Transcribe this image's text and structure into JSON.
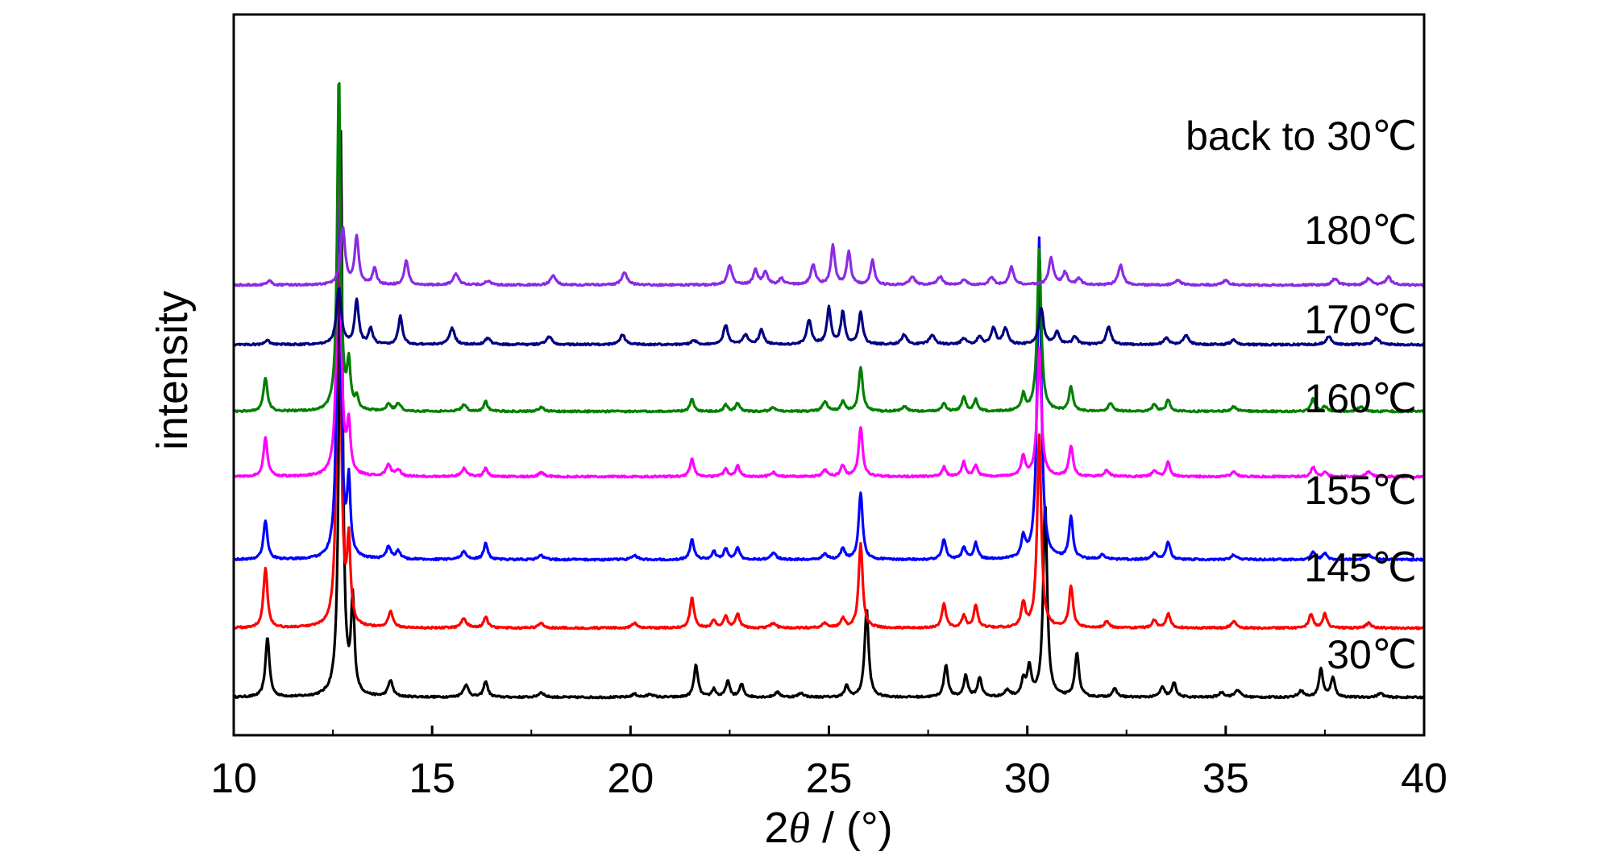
{
  "chart_data": {
    "type": "line",
    "xlabel_prefix": "2",
    "xlabel_symbol": "θ",
    "xlabel_suffix": " / (°)",
    "ylabel": "intensity",
    "xlim": [
      10,
      40
    ],
    "xticks": [
      10,
      15,
      20,
      25,
      30,
      35,
      40
    ],
    "yticks_shown": false,
    "grid": false,
    "legend": "labels above each trace on the right",
    "series": [
      {
        "name": "30℃",
        "color": "#000000",
        "offset": 0,
        "base": 2.0,
        "peaks": [
          [
            10.85,
            75,
            0.06
          ],
          [
            12.7,
            700,
            0.05
          ],
          [
            13.0,
            115,
            0.05
          ],
          [
            13.95,
            20,
            0.07
          ],
          [
            15.85,
            15,
            0.08
          ],
          [
            16.35,
            20,
            0.06
          ],
          [
            17.75,
            6,
            0.08
          ],
          [
            20.1,
            4,
            0.08
          ],
          [
            20.5,
            4,
            0.08
          ],
          [
            21.65,
            40,
            0.06
          ],
          [
            22.1,
            10,
            0.06
          ],
          [
            22.45,
            20,
            0.06
          ],
          [
            22.8,
            16,
            0.06
          ],
          [
            23.7,
            6,
            0.08
          ],
          [
            24.3,
            5,
            0.08
          ],
          [
            25.45,
            14,
            0.06
          ],
          [
            25.95,
            110,
            0.06
          ],
          [
            27.95,
            40,
            0.06
          ],
          [
            28.45,
            27,
            0.06
          ],
          [
            28.8,
            24,
            0.06
          ],
          [
            29.5,
            8,
            0.08
          ],
          [
            29.9,
            20,
            0.06
          ],
          [
            30.05,
            35,
            0.06
          ],
          [
            30.45,
            240,
            0.06
          ],
          [
            31.25,
            55,
            0.06
          ],
          [
            32.2,
            10,
            0.07
          ],
          [
            33.4,
            12,
            0.07
          ],
          [
            33.7,
            18,
            0.06
          ],
          [
            34.9,
            6,
            0.08
          ],
          [
            35.3,
            9,
            0.08
          ],
          [
            36.9,
            8,
            0.08
          ],
          [
            37.4,
            35,
            0.06
          ],
          [
            37.7,
            25,
            0.06
          ],
          [
            38.9,
            5,
            0.08
          ]
        ]
      },
      {
        "name": "145℃",
        "color": "#ff0000",
        "offset": 86,
        "base": 2.0,
        "peaks": [
          [
            10.8,
            75,
            0.06
          ],
          [
            12.65,
            640,
            0.05
          ],
          [
            12.9,
            100,
            0.05
          ],
          [
            13.95,
            20,
            0.07
          ],
          [
            15.8,
            12,
            0.08
          ],
          [
            16.35,
            14,
            0.06
          ],
          [
            17.75,
            6,
            0.08
          ],
          [
            20.1,
            6,
            0.08
          ],
          [
            21.55,
            38,
            0.06
          ],
          [
            22.1,
            10,
            0.06
          ],
          [
            22.4,
            14,
            0.06
          ],
          [
            22.7,
            18,
            0.06
          ],
          [
            23.6,
            6,
            0.08
          ],
          [
            24.9,
            6,
            0.08
          ],
          [
            25.35,
            12,
            0.06
          ],
          [
            25.8,
            105,
            0.06
          ],
          [
            27.9,
            30,
            0.06
          ],
          [
            28.4,
            15,
            0.06
          ],
          [
            28.7,
            28,
            0.06
          ],
          [
            29.9,
            30,
            0.06
          ],
          [
            30.3,
            240,
            0.06
          ],
          [
            31.1,
            52,
            0.06
          ],
          [
            32.0,
            8,
            0.07
          ],
          [
            33.2,
            10,
            0.07
          ],
          [
            33.55,
            18,
            0.06
          ],
          [
            35.2,
            8,
            0.08
          ],
          [
            37.15,
            18,
            0.06
          ],
          [
            37.5,
            18,
            0.06
          ],
          [
            38.6,
            6,
            0.08
          ]
        ]
      },
      {
        "name": "155℃",
        "color": "#0000ff",
        "offset": 171,
        "base": 2.0,
        "peaks": [
          [
            10.8,
            48,
            0.06
          ],
          [
            12.65,
            560,
            0.05
          ],
          [
            12.9,
            90,
            0.05
          ],
          [
            13.9,
            15,
            0.07
          ],
          [
            14.15,
            10,
            0.07
          ],
          [
            15.8,
            10,
            0.08
          ],
          [
            16.35,
            20,
            0.06
          ],
          [
            17.75,
            5,
            0.08
          ],
          [
            20.1,
            5,
            0.08
          ],
          [
            21.55,
            25,
            0.06
          ],
          [
            22.1,
            10,
            0.06
          ],
          [
            22.4,
            14,
            0.06
          ],
          [
            22.7,
            14,
            0.06
          ],
          [
            23.6,
            8,
            0.08
          ],
          [
            24.9,
            7,
            0.08
          ],
          [
            25.35,
            14,
            0.06
          ],
          [
            25.8,
            82,
            0.06
          ],
          [
            27.9,
            25,
            0.06
          ],
          [
            28.4,
            15,
            0.06
          ],
          [
            28.7,
            20,
            0.06
          ],
          [
            29.9,
            25,
            0.06
          ],
          [
            30.3,
            400,
            0.06
          ],
          [
            31.1,
            52,
            0.06
          ],
          [
            31.9,
            6,
            0.07
          ],
          [
            33.2,
            8,
            0.07
          ],
          [
            33.55,
            22,
            0.06
          ],
          [
            35.2,
            6,
            0.08
          ],
          [
            37.2,
            10,
            0.06
          ],
          [
            37.5,
            8,
            0.06
          ],
          [
            38.6,
            6,
            0.08
          ]
        ]
      },
      {
        "name": "160℃",
        "color": "#ff00ff",
        "offset": 274,
        "base": 2.0,
        "peaks": [
          [
            10.8,
            48,
            0.06
          ],
          [
            12.65,
            480,
            0.05
          ],
          [
            12.9,
            60,
            0.05
          ],
          [
            13.9,
            15,
            0.07
          ],
          [
            14.15,
            8,
            0.07
          ],
          [
            15.8,
            10,
            0.08
          ],
          [
            16.35,
            10,
            0.06
          ],
          [
            17.75,
            5,
            0.08
          ],
          [
            21.55,
            22,
            0.06
          ],
          [
            22.4,
            10,
            0.06
          ],
          [
            22.7,
            14,
            0.06
          ],
          [
            23.6,
            5,
            0.08
          ],
          [
            24.9,
            8,
            0.08
          ],
          [
            25.35,
            14,
            0.06
          ],
          [
            25.8,
            62,
            0.06
          ],
          [
            27.9,
            12,
            0.06
          ],
          [
            28.4,
            18,
            0.06
          ],
          [
            28.7,
            14,
            0.06
          ],
          [
            29.9,
            25,
            0.06
          ],
          [
            30.3,
            160,
            0.06
          ],
          [
            31.1,
            38,
            0.06
          ],
          [
            32.0,
            8,
            0.07
          ],
          [
            33.2,
            8,
            0.07
          ],
          [
            33.55,
            18,
            0.06
          ],
          [
            35.2,
            6,
            0.08
          ],
          [
            37.2,
            12,
            0.06
          ],
          [
            37.5,
            6,
            0.06
          ],
          [
            38.6,
            6,
            0.08
          ]
        ]
      },
      {
        "name": "170℃",
        "color": "#008000",
        "offset": 355,
        "base": 2.0,
        "peaks": [
          [
            10.8,
            42,
            0.06
          ],
          [
            12.65,
            420,
            0.05
          ],
          [
            12.9,
            55,
            0.05
          ],
          [
            13.1,
            15,
            0.05
          ],
          [
            13.9,
            8,
            0.07
          ],
          [
            14.15,
            10,
            0.07
          ],
          [
            15.8,
            8,
            0.08
          ],
          [
            16.35,
            12,
            0.06
          ],
          [
            17.75,
            5,
            0.08
          ],
          [
            21.55,
            15,
            0.06
          ],
          [
            22.4,
            8,
            0.06
          ],
          [
            22.7,
            10,
            0.06
          ],
          [
            23.6,
            5,
            0.08
          ],
          [
            24.9,
            12,
            0.08
          ],
          [
            25.35,
            12,
            0.06
          ],
          [
            25.8,
            55,
            0.06
          ],
          [
            26.9,
            6,
            0.08
          ],
          [
            27.9,
            10,
            0.06
          ],
          [
            28.4,
            18,
            0.06
          ],
          [
            28.7,
            14,
            0.06
          ],
          [
            29.9,
            20,
            0.06
          ],
          [
            30.3,
            200,
            0.06
          ],
          [
            31.1,
            30,
            0.06
          ],
          [
            32.1,
            10,
            0.07
          ],
          [
            33.2,
            8,
            0.07
          ],
          [
            33.55,
            15,
            0.06
          ],
          [
            35.2,
            6,
            0.08
          ],
          [
            37.2,
            16,
            0.06
          ],
          [
            37.5,
            6,
            0.06
          ],
          [
            38.4,
            6,
            0.08
          ]
        ]
      },
      {
        "name": "180℃",
        "color": "#000080",
        "offset": 438,
        "base": 2.0,
        "peaks": [
          [
            10.85,
            6,
            0.06
          ],
          [
            12.65,
            70,
            0.07
          ],
          [
            13.1,
            55,
            0.06
          ],
          [
            13.45,
            20,
            0.06
          ],
          [
            14.2,
            35,
            0.06
          ],
          [
            15.5,
            20,
            0.08
          ],
          [
            16.4,
            8,
            0.08
          ],
          [
            17.95,
            10,
            0.08
          ],
          [
            19.8,
            12,
            0.08
          ],
          [
            21.6,
            5,
            0.08
          ],
          [
            22.4,
            24,
            0.07
          ],
          [
            22.9,
            12,
            0.07
          ],
          [
            23.3,
            18,
            0.07
          ],
          [
            24.5,
            30,
            0.07
          ],
          [
            25.0,
            45,
            0.06
          ],
          [
            25.35,
            40,
            0.06
          ],
          [
            25.8,
            40,
            0.06
          ],
          [
            26.9,
            12,
            0.08
          ],
          [
            27.6,
            12,
            0.08
          ],
          [
            28.4,
            8,
            0.07
          ],
          [
            28.8,
            10,
            0.07
          ],
          [
            29.15,
            20,
            0.07
          ],
          [
            29.45,
            20,
            0.07
          ],
          [
            30.35,
            45,
            0.07
          ],
          [
            30.75,
            15,
            0.07
          ],
          [
            31.2,
            10,
            0.07
          ],
          [
            32.05,
            22,
            0.07
          ],
          [
            33.5,
            8,
            0.08
          ],
          [
            34.0,
            12,
            0.08
          ],
          [
            35.2,
            6,
            0.08
          ],
          [
            37.6,
            10,
            0.08
          ],
          [
            38.8,
            8,
            0.08
          ]
        ]
      },
      {
        "name": "back to 30℃",
        "color": "#8b2be2",
        "offset": 512,
        "base": 2.0,
        "peaks": [
          [
            10.9,
            6,
            0.06
          ],
          [
            12.75,
            70,
            0.07
          ],
          [
            13.1,
            60,
            0.06
          ],
          [
            13.55,
            20,
            0.06
          ],
          [
            14.35,
            30,
            0.06
          ],
          [
            15.6,
            14,
            0.08
          ],
          [
            16.4,
            5,
            0.08
          ],
          [
            18.05,
            12,
            0.08
          ],
          [
            19.85,
            16,
            0.08
          ],
          [
            22.5,
            25,
            0.07
          ],
          [
            23.15,
            18,
            0.07
          ],
          [
            23.4,
            15,
            0.07
          ],
          [
            23.8,
            8,
            0.07
          ],
          [
            24.6,
            25,
            0.07
          ],
          [
            25.1,
            48,
            0.06
          ],
          [
            25.5,
            40,
            0.06
          ],
          [
            26.1,
            30,
            0.06
          ],
          [
            27.1,
            10,
            0.08
          ],
          [
            27.8,
            10,
            0.08
          ],
          [
            28.4,
            6,
            0.08
          ],
          [
            29.1,
            10,
            0.07
          ],
          [
            29.6,
            22,
            0.07
          ],
          [
            30.6,
            33,
            0.07
          ],
          [
            30.95,
            15,
            0.07
          ],
          [
            31.3,
            8,
            0.07
          ],
          [
            32.35,
            25,
            0.07
          ],
          [
            33.8,
            6,
            0.08
          ],
          [
            35.0,
            6,
            0.08
          ],
          [
            37.75,
            8,
            0.08
          ],
          [
            38.6,
            8,
            0.08
          ],
          [
            39.1,
            10,
            0.08
          ]
        ]
      }
    ]
  }
}
